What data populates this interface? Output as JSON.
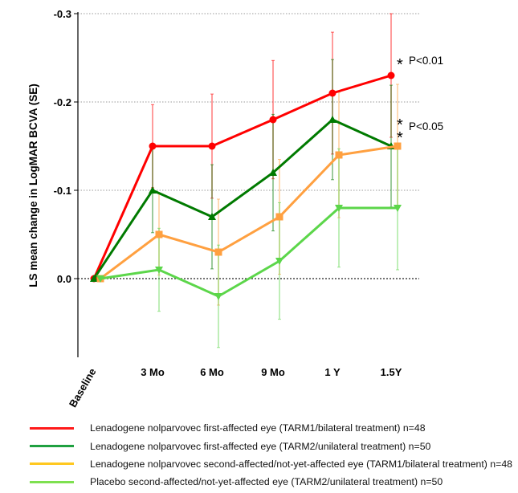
{
  "chart_data": {
    "type": "line",
    "ylabel": "LS mean change in LogMAR BCVA (SE)",
    "xlabel": "",
    "categories": [
      "Baseline",
      "3 Mo",
      "6 Mo",
      "9 Mo",
      "1 Y",
      "1.5Y"
    ],
    "ylim": [
      0.09,
      -0.3
    ],
    "y_inverted": true,
    "yticks": [
      -0.3,
      -0.2,
      -0.1,
      0.0
    ],
    "ytick_labels": [
      "-0.3",
      "-0.2",
      "-0.1",
      "0.0"
    ],
    "grid": "horizontal dotted",
    "legend_position": "bottom",
    "series": [
      {
        "name": "Lenadogene nolparvovec first-affected eye (TARM1/bilateral treatment) n=48",
        "color": "#ff0000",
        "legend_color": "#ff1a1a",
        "marker": "circle",
        "values": [
          0,
          -0.15,
          -0.15,
          -0.18,
          -0.21,
          -0.23
        ],
        "se": [
          0,
          0.047,
          0.059,
          0.067,
          0.069,
          0.07
        ]
      },
      {
        "name": "Lenadogene nolparvovec first-affected eye (TARM2/unilateral treatment) n=50",
        "color": "#007a00",
        "legend_color": "#1fa040",
        "marker": "triangle",
        "values": [
          0,
          -0.1,
          -0.07,
          -0.12,
          -0.18,
          -0.15
        ],
        "se": [
          0,
          0.048,
          0.059,
          0.066,
          0.068,
          0.069
        ]
      },
      {
        "name": "Lenadogene nolparvovec second-affected/not-yet-affected eye (TARM1/bilateral treatment) n=48",
        "color": "#ffa040",
        "legend_color": "#ffc820",
        "marker": "square",
        "values": [
          0,
          -0.05,
          -0.03,
          -0.07,
          -0.14,
          -0.15
        ],
        "se": [
          0,
          0.046,
          0.06,
          0.065,
          0.071,
          0.07
        ]
      },
      {
        "name": "Placebo second-affected/not-yet-affected eye (TARM2/unilateral treatment) n=50",
        "color": "#5cd64a",
        "legend_color": "#7ee050",
        "marker": "triangle-down",
        "values": [
          0,
          -0.01,
          0.02,
          -0.02,
          -0.08,
          -0.08
        ],
        "se": [
          0,
          0.047,
          0.058,
          0.066,
          0.067,
          0.07
        ]
      }
    ],
    "annotations": [
      {
        "text": "P<0.01",
        "stars": "*",
        "at": "1.5Y",
        "series": 0
      },
      {
        "text": "P<0.05",
        "stars": "* *",
        "at": "1.5Y",
        "series": 1
      }
    ]
  }
}
